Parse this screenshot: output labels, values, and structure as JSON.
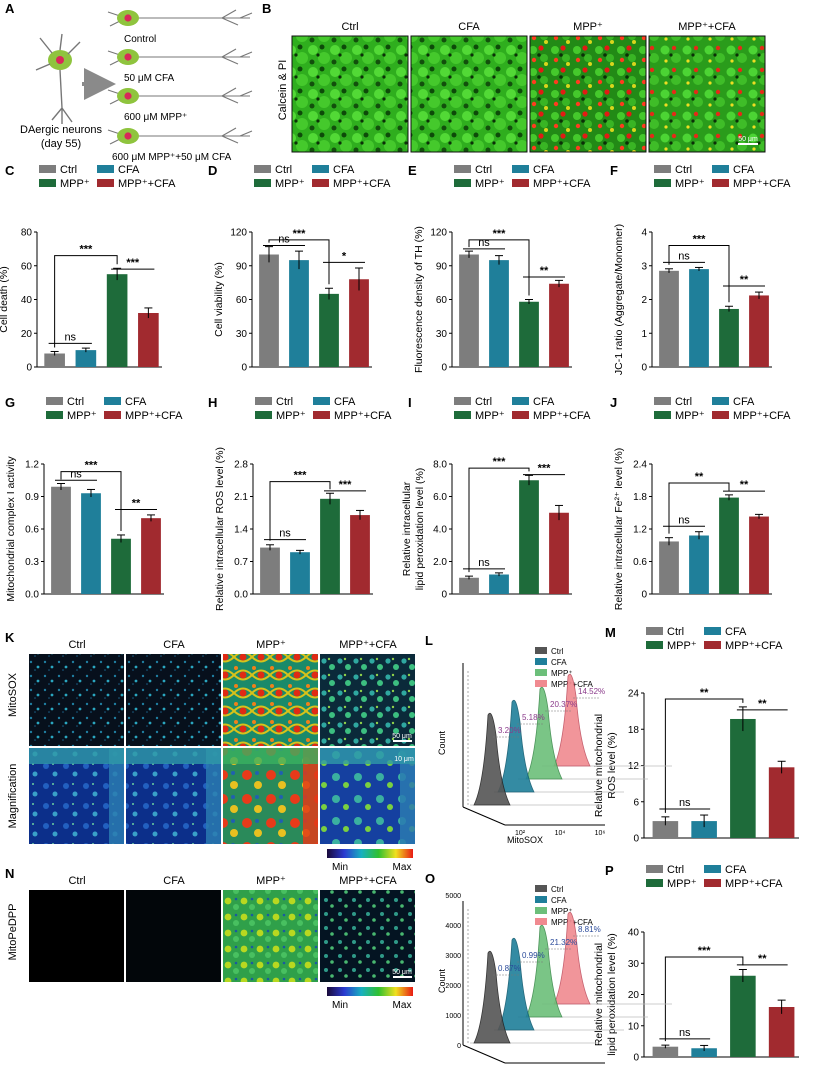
{
  "colors": {
    "ctrl": "#7d7d7d",
    "cfa": "#1f7f9a",
    "mpp": "#1e6b3a",
    "mppcfa": "#a12a2f"
  },
  "panelA": {
    "letter": "A",
    "labels": [
      "Control",
      "50 μM CFA",
      "600 μM MPP⁺",
      "600 μM MPP⁺+50 μM CFA"
    ],
    "neuron_label_1": "DAergic neurons",
    "neuron_label_2": "(day 55)"
  },
  "panelB": {
    "letter": "B",
    "row_label": "Calcein & PI",
    "columns": [
      "Ctrl",
      "CFA",
      "MPP⁺",
      "MPP⁺+CFA"
    ],
    "scale_bar": "50 μm"
  },
  "legend": {
    "ctrl": "Ctrl",
    "cfa": "CFA",
    "mpp": "MPP⁺",
    "mppcfa": "MPP⁺+CFA"
  },
  "panelK": {
    "letter": "K",
    "columns": [
      "Ctrl",
      "CFA",
      "MPP⁺",
      "MPP⁺+CFA"
    ],
    "row1": "MitoSOX",
    "row2": "Magnification",
    "scale1": "50 μm",
    "scale2": "10 μm",
    "cb_min": "Min",
    "cb_max": "Max"
  },
  "panelN": {
    "letter": "N",
    "columns": [
      "Ctrl",
      "CFA",
      "MPP⁺",
      "MPP⁺+CFA"
    ],
    "row": "MitoPeDPP",
    "scale": "50 μm",
    "cb_min": "Min",
    "cb_max": "Max"
  },
  "panelL": {
    "letter": "L",
    "ylabel": "Count",
    "xlabel": "MitoSOX",
    "legend": [
      "Ctrl",
      "CFA",
      "MPP⁺",
      "MPP⁺+CFA"
    ],
    "percents": [
      "3.20%",
      "5.18%",
      "20.37%",
      "14.52%"
    ],
    "ticks": [
      "10²",
      "10⁴",
      "10⁶"
    ]
  },
  "panelO": {
    "letter": "O",
    "ylabel": "Count",
    "xlabel": "MitoPeDPP",
    "legend": [
      "Ctrl",
      "CFA",
      "MPP⁺",
      "MPP⁺+CFA"
    ],
    "percents": [
      "0.87%",
      "0.99%",
      "21.32%",
      "8.81%"
    ],
    "yticks": [
      "0",
      "1000",
      "2000",
      "3000",
      "4000",
      "5000"
    ],
    "ticks": [
      "10²",
      "10⁴",
      "10⁶"
    ]
  },
  "chart_data": [
    {
      "id": "C",
      "type": "bar",
      "categories": [
        "Ctrl",
        "CFA",
        "MPP⁺",
        "MPP⁺+CFA"
      ],
      "values": [
        8,
        10,
        55,
        32
      ],
      "errors": [
        1.2,
        1.2,
        3.5,
        3
      ],
      "ylabel": "Cell death (%)",
      "ylim": [
        0,
        80
      ],
      "yticks": [
        "0",
        "20",
        "40",
        "60",
        "80"
      ],
      "sig": [
        {
          "a": 0,
          "b": 2,
          "y": 66,
          "t": "***"
        },
        {
          "a": 2,
          "b": 3,
          "y": 58,
          "t": "***"
        },
        {
          "a": 0,
          "b": 1,
          "y": 14,
          "t": "ns"
        }
      ]
    },
    {
      "id": "D",
      "type": "bar",
      "categories": [
        "Ctrl",
        "CFA",
        "MPP⁺",
        "MPP⁺+CFA"
      ],
      "values": [
        100,
        95,
        65,
        78
      ],
      "errors": [
        7,
        8,
        5,
        10
      ],
      "ylabel": "Cell viability (%)",
      "ylim": [
        0,
        120
      ],
      "yticks": [
        "0",
        "30",
        "60",
        "90",
        "120"
      ],
      "sig": [
        {
          "a": 0,
          "b": 2,
          "y": 113,
          "t": "***"
        },
        {
          "a": 0,
          "b": 1,
          "y": 108,
          "t": "ns"
        },
        {
          "a": 2,
          "b": 3,
          "y": 93,
          "t": "*"
        }
      ]
    },
    {
      "id": "E",
      "type": "bar",
      "categories": [
        "Ctrl",
        "CFA",
        "MPP⁺",
        "MPP⁺+CFA"
      ],
      "values": [
        100,
        95,
        58,
        74
      ],
      "errors": [
        3,
        4,
        2,
        3
      ],
      "ylabel": "Fluorescence density of TH  (%)",
      "ylim": [
        0,
        120
      ],
      "yticks": [
        "0",
        "30",
        "60",
        "90",
        "120"
      ],
      "sig": [
        {
          "a": 0,
          "b": 2,
          "y": 113,
          "t": "***"
        },
        {
          "a": 0,
          "b": 1,
          "y": 105,
          "t": "ns"
        },
        {
          "a": 2,
          "b": 3,
          "y": 80,
          "t": "**"
        }
      ]
    },
    {
      "id": "F",
      "type": "bar",
      "categories": [
        "Ctrl",
        "CFA",
        "MPP⁺",
        "MPP⁺+CFA"
      ],
      "values": [
        2.85,
        2.9,
        1.72,
        2.12
      ],
      "errors": [
        0.06,
        0.05,
        0.08,
        0.1
      ],
      "ylabel": "JC-1 ratio (Aggregate/Monomer)",
      "ylim": [
        0,
        4
      ],
      "yticks": [
        "0",
        "1",
        "2",
        "3",
        "4"
      ],
      "sig": [
        {
          "a": 0,
          "b": 2,
          "y": 3.6,
          "t": "***"
        },
        {
          "a": 0,
          "b": 1,
          "y": 3.1,
          "t": "ns"
        },
        {
          "a": 2,
          "b": 3,
          "y": 2.4,
          "t": "**"
        }
      ]
    },
    {
      "id": "G",
      "type": "bar",
      "categories": [
        "Ctrl",
        "CFA",
        "MPP⁺",
        "MPP⁺+CFA"
      ],
      "values": [
        0.99,
        0.93,
        0.51,
        0.7
      ],
      "errors": [
        0.03,
        0.035,
        0.035,
        0.03
      ],
      "ylabel": "Mitochondrial complex I activity",
      "ylim": [
        0,
        1.2
      ],
      "yticks": [
        "0.0",
        "0.3",
        "0.6",
        "0.9",
        "1.2"
      ],
      "sig": [
        {
          "a": 0,
          "b": 2,
          "y": 1.13,
          "t": "***"
        },
        {
          "a": 0,
          "b": 1,
          "y": 1.05,
          "t": "ns"
        },
        {
          "a": 2,
          "b": 3,
          "y": 0.78,
          "t": "**"
        }
      ]
    },
    {
      "id": "H",
      "type": "bar",
      "categories": [
        "Ctrl",
        "CFA",
        "MPP⁺",
        "MPP⁺+CFA"
      ],
      "values": [
        1.0,
        0.9,
        2.05,
        1.7
      ],
      "errors": [
        0.06,
        0.04,
        0.12,
        0.1
      ],
      "ylabel": "Relative intracellular ROS level (%)",
      "ylim": [
        0,
        2.8
      ],
      "yticks": [
        "0.0",
        "0.7",
        "1.4",
        "2.1",
        "2.8"
      ],
      "sig": [
        {
          "a": 0,
          "b": 2,
          "y": 2.42,
          "t": "***"
        },
        {
          "a": 2,
          "b": 3,
          "y": 2.22,
          "t": "***"
        },
        {
          "a": 0,
          "b": 1,
          "y": 1.17,
          "t": "ns"
        }
      ]
    },
    {
      "id": "I",
      "type": "bar",
      "categories": [
        "Ctrl",
        "CFA",
        "MPP⁺",
        "MPP⁺+CFA"
      ],
      "values": [
        1.0,
        1.2,
        7.0,
        5.0
      ],
      "errors": [
        0.1,
        0.1,
        0.3,
        0.45
      ],
      "ylabel": "lipid peroxidation level (%)",
      "ylabel2": "Relative intracellular",
      "ylim": [
        0,
        8
      ],
      "yticks": [
        "0",
        "2.0",
        "4.0",
        "6.0",
        "8.0"
      ],
      "sig": [
        {
          "a": 0,
          "b": 2,
          "y": 7.75,
          "t": "***"
        },
        {
          "a": 2,
          "b": 3,
          "y": 7.35,
          "t": "***"
        },
        {
          "a": 0,
          "b": 1,
          "y": 1.55,
          "t": "ns"
        }
      ]
    },
    {
      "id": "J",
      "type": "bar",
      "categories": [
        "Ctrl",
        "CFA",
        "MPP⁺",
        "MPP⁺+CFA"
      ],
      "values": [
        0.97,
        1.08,
        1.78,
        1.43
      ],
      "errors": [
        0.07,
        0.07,
        0.05,
        0.04
      ],
      "ylabel": "Relative intracellular Fe²⁺ level (%)",
      "ylim": [
        0,
        2.4
      ],
      "yticks": [
        "0",
        "0.6",
        "1.2",
        "1.8",
        "2.4"
      ],
      "sig": [
        {
          "a": 0,
          "b": 2,
          "y": 2.05,
          "t": "**"
        },
        {
          "a": 2,
          "b": 3,
          "y": 1.9,
          "t": "**"
        },
        {
          "a": 0,
          "b": 1,
          "y": 1.25,
          "t": "ns"
        }
      ]
    },
    {
      "id": "M",
      "type": "bar",
      "categories": [
        "Ctrl",
        "CFA",
        "MPP⁺",
        "MPP⁺+CFA"
      ],
      "values": [
        2.8,
        2.8,
        19.7,
        11.7
      ],
      "errors": [
        0.7,
        1.0,
        2.0,
        1.0
      ],
      "ylabel": "ROS level (%)",
      "ylabel2": "Relative mitochondrial",
      "ylim": [
        0,
        24
      ],
      "yticks": [
        "0",
        "6",
        "12",
        "18",
        "24"
      ],
      "sig": [
        {
          "a": 0,
          "b": 2,
          "y": 23.0,
          "t": "**"
        },
        {
          "a": 2,
          "b": 3,
          "y": 21.2,
          "t": "**"
        },
        {
          "a": 0,
          "b": 1,
          "y": 4.8,
          "t": "ns"
        }
      ]
    },
    {
      "id": "P",
      "type": "bar",
      "categories": [
        "Ctrl",
        "CFA",
        "MPP⁺",
        "MPP⁺+CFA"
      ],
      "values": [
        3.3,
        2.8,
        26.0,
        16.0
      ],
      "errors": [
        0.5,
        0.9,
        2.0,
        2.2
      ],
      "ylabel": "lipid peroxidation level (%)",
      "ylabel2": "Relative mitochondrial",
      "ylim": [
        0,
        40
      ],
      "yticks": [
        "0",
        "10",
        "20",
        "30",
        "40"
      ],
      "sig": [
        {
          "a": 0,
          "b": 2,
          "y": 32,
          "t": "***"
        },
        {
          "a": 2,
          "b": 3,
          "y": 29.5,
          "t": "**"
        },
        {
          "a": 0,
          "b": 1,
          "y": 5.8,
          "t": "ns"
        }
      ]
    }
  ]
}
